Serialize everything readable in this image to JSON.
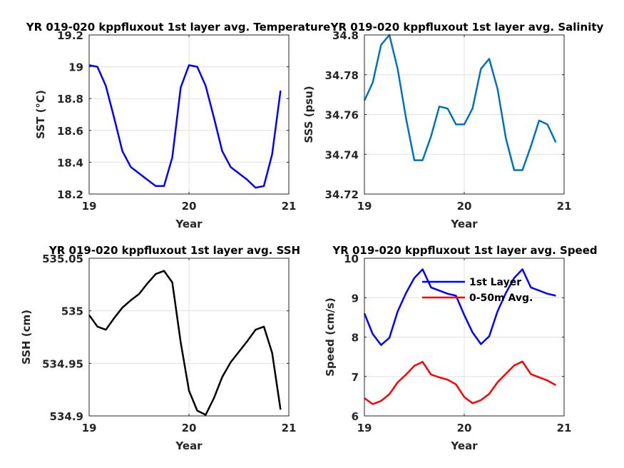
{
  "chart_data": [
    {
      "type": "line",
      "title": "YR 019-020 kppfluxout 1st layer avg. Temperature",
      "xlabel": "Year",
      "ylabel": "SST (°C)",
      "xlim": [
        19,
        21
      ],
      "ylim": [
        18.2,
        19.2
      ],
      "xticks": [
        "19",
        "20",
        "21"
      ],
      "yticks": [
        "18.2",
        "18.4",
        "18.6",
        "18.8",
        "19",
        "19.2"
      ],
      "grid": true,
      "series": [
        {
          "color": "#0000ff",
          "x": [
            19.0,
            19.083,
            19.167,
            19.25,
            19.333,
            19.417,
            19.5,
            19.583,
            19.667,
            19.75,
            19.833,
            19.917,
            20.0,
            20.083,
            20.167,
            20.25,
            20.333,
            20.417,
            20.5,
            20.583,
            20.667,
            20.75,
            20.833,
            20.917
          ],
          "y": [
            19.01,
            19.0,
            18.88,
            18.68,
            18.47,
            18.37,
            18.33,
            18.29,
            18.25,
            18.25,
            18.43,
            18.87,
            19.01,
            19.0,
            18.88,
            18.68,
            18.47,
            18.37,
            18.33,
            18.29,
            18.24,
            18.25,
            18.45,
            18.85
          ]
        }
      ]
    },
    {
      "type": "line",
      "title": "YR 019-020 kppfluxout 1st layer avg. Salinity",
      "xlabel": "Year",
      "ylabel": "SSS (psu)",
      "xlim": [
        19,
        21
      ],
      "ylim": [
        34.72,
        34.8
      ],
      "xticks": [
        "19",
        "20",
        "21"
      ],
      "yticks": [
        "34.72",
        "34.74",
        "34.76",
        "34.78",
        "34.8"
      ],
      "grid": true,
      "series": [
        {
          "color": "#0072bd",
          "x": [
            19.0,
            19.083,
            19.167,
            19.25,
            19.333,
            19.417,
            19.5,
            19.583,
            19.667,
            19.75,
            19.833,
            19.917,
            20.0,
            20.083,
            20.167,
            20.25,
            20.333,
            20.417,
            20.5,
            20.583,
            20.667,
            20.75,
            20.833,
            20.917
          ],
          "y": [
            34.767,
            34.776,
            34.795,
            34.8,
            34.783,
            34.758,
            34.737,
            34.737,
            34.749,
            34.764,
            34.763,
            34.755,
            34.755,
            34.763,
            34.783,
            34.788,
            34.773,
            34.748,
            34.732,
            34.732,
            34.744,
            34.757,
            34.755,
            34.746
          ]
        }
      ]
    },
    {
      "type": "line",
      "title": "YR 019-020 kppfluxout 1st layer avg. SSH",
      "xlabel": "Year",
      "ylabel": "SSH (cm)",
      "xlim": [
        19,
        21
      ],
      "ylim": [
        534.9,
        535.05
      ],
      "xticks": [
        "19",
        "20",
        "21"
      ],
      "yticks": [
        "534.9",
        "534.95",
        "535",
        "535.05"
      ],
      "grid": true,
      "series": [
        {
          "color": "#000000",
          "x": [
            19.0,
            19.083,
            19.167,
            19.25,
            19.333,
            19.417,
            19.5,
            19.583,
            19.667,
            19.75,
            19.833,
            19.917,
            20.0,
            20.083,
            20.167,
            20.25,
            20.333,
            20.417,
            20.5,
            20.583,
            20.667,
            20.75,
            20.833,
            20.917
          ],
          "y": [
            534.996,
            534.985,
            534.982,
            534.993,
            535.003,
            535.01,
            535.016,
            535.026,
            535.035,
            535.038,
            535.027,
            534.97,
            534.924,
            534.905,
            534.901,
            534.917,
            534.937,
            534.951,
            534.961,
            534.971,
            534.982,
            534.985,
            534.96,
            534.906
          ]
        }
      ]
    },
    {
      "type": "line",
      "title": "YR 019-020 kppfluxout 1st layer avg. Speed",
      "xlabel": "Year",
      "ylabel": "Speed (cm/s)",
      "xlim": [
        19,
        21
      ],
      "ylim": [
        6,
        10
      ],
      "xticks": [
        "19",
        "20",
        "21"
      ],
      "yticks": [
        "6",
        "7",
        "8",
        "9",
        "10"
      ],
      "grid": true,
      "legend": "top-right",
      "series": [
        {
          "name": "1st Layer",
          "color": "#0000ff",
          "x": [
            19.0,
            19.083,
            19.167,
            19.25,
            19.333,
            19.417,
            19.5,
            19.583,
            19.667,
            19.75,
            19.833,
            19.917,
            20.0,
            20.083,
            20.167,
            20.25,
            20.333,
            20.417,
            20.5,
            20.583,
            20.667,
            20.75,
            20.833,
            20.917
          ],
          "y": [
            8.6,
            8.08,
            7.8,
            7.98,
            8.65,
            9.12,
            9.5,
            9.72,
            9.26,
            9.18,
            9.1,
            9.05,
            8.56,
            8.12,
            7.82,
            8.02,
            8.65,
            9.12,
            9.5,
            9.72,
            9.26,
            9.18,
            9.1,
            9.05
          ]
        },
        {
          "name": "0-50m Avg.",
          "color": "#ff0000",
          "x": [
            19.0,
            19.083,
            19.167,
            19.25,
            19.333,
            19.417,
            19.5,
            19.583,
            19.667,
            19.75,
            19.833,
            19.917,
            20.0,
            20.083,
            20.167,
            20.25,
            20.333,
            20.417,
            20.5,
            20.583,
            20.667,
            20.75,
            20.833,
            20.917
          ],
          "y": [
            6.45,
            6.3,
            6.38,
            6.55,
            6.85,
            7.05,
            7.27,
            7.37,
            7.05,
            6.98,
            6.92,
            6.8,
            6.48,
            6.32,
            6.4,
            6.56,
            6.85,
            7.07,
            7.28,
            7.38,
            7.06,
            6.98,
            6.9,
            6.78
          ]
        }
      ]
    }
  ]
}
